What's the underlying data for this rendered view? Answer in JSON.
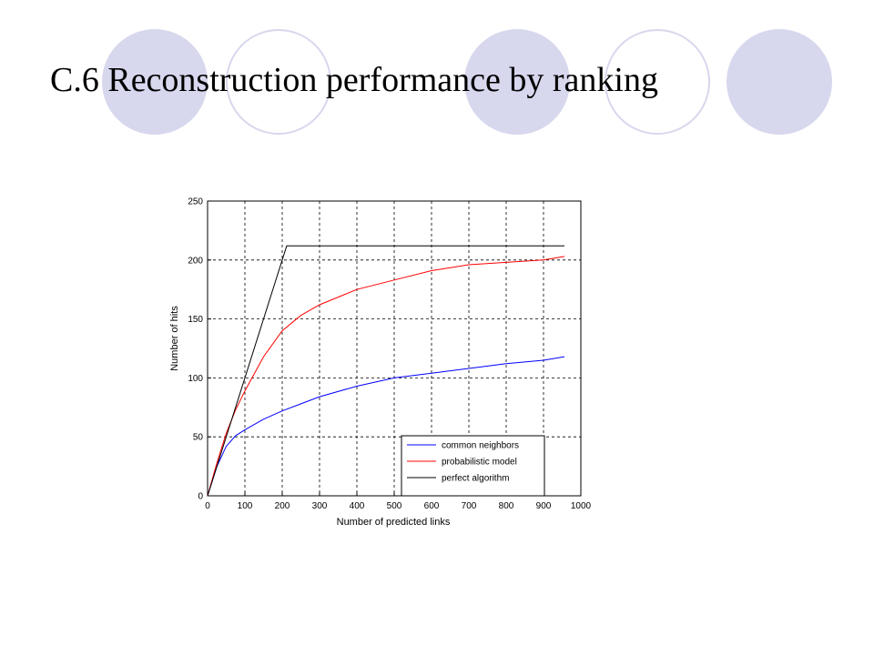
{
  "slide": {
    "title": "C.6 Reconstruction performance by ranking",
    "decoration_color": "#d7d7ee"
  },
  "chart_data": {
    "type": "line",
    "title": "",
    "xlabel": "Number of predicted links",
    "ylabel": "Number of hits",
    "xlim": [
      0,
      1000
    ],
    "ylim": [
      0,
      250
    ],
    "xticks": [
      0,
      100,
      200,
      300,
      400,
      500,
      600,
      700,
      800,
      900,
      1000
    ],
    "yticks": [
      0,
      50,
      100,
      150,
      200,
      250
    ],
    "grid": true,
    "legend_position": "bottom-right",
    "series": [
      {
        "name": "common neighbors",
        "color": "#0000ff",
        "x": [
          0,
          25,
          50,
          75,
          100,
          150,
          200,
          250,
          300,
          400,
          500,
          600,
          700,
          800,
          900,
          956
        ],
        "y": [
          0,
          25,
          42,
          51,
          56,
          65,
          72,
          78,
          84,
          93,
          100,
          104,
          108,
          112,
          115,
          118
        ]
      },
      {
        "name": "probabilistic model",
        "color": "#ff0000",
        "x": [
          0,
          25,
          50,
          75,
          100,
          150,
          200,
          250,
          300,
          400,
          500,
          600,
          700,
          800,
          900,
          956
        ],
        "y": [
          0,
          28,
          53,
          73,
          89,
          118,
          140,
          153,
          162,
          175,
          183,
          191,
          196,
          198,
          200,
          203
        ]
      },
      {
        "name": "perfect algorithm",
        "color": "#000000",
        "x": [
          0,
          212,
          956
        ],
        "y": [
          0,
          212,
          212
        ]
      }
    ]
  }
}
